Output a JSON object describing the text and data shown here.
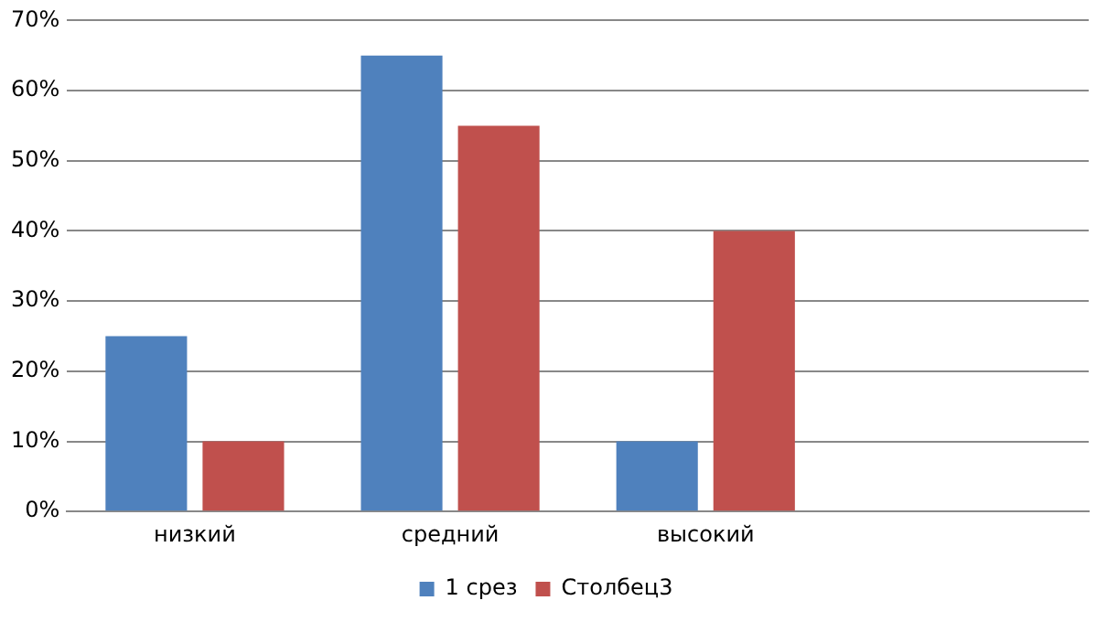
{
  "chart_data": {
    "type": "bar",
    "categories": [
      "низкий",
      "средний",
      "высокий",
      null
    ],
    "series": [
      {
        "name": "1 срез",
        "color": "#4f81bd",
        "values": [
          25,
          65,
          10,
          null
        ]
      },
      {
        "name": "Столбец3",
        "color": "#c0504d",
        "values": [
          10,
          55,
          40,
          null
        ]
      }
    ],
    "ylim": [
      0,
      70
    ],
    "yticks": [
      {
        "value": 0,
        "label": "0%"
      },
      {
        "value": 10,
        "label": "10%"
      },
      {
        "value": 20,
        "label": "20%"
      },
      {
        "value": 30,
        "label": "30%"
      },
      {
        "value": 40,
        "label": "40%"
      },
      {
        "value": 50,
        "label": "50%"
      },
      {
        "value": 60,
        "label": "60%"
      },
      {
        "value": 70,
        "label": "70%"
      }
    ],
    "grid": "y",
    "legend": "bottom"
  }
}
